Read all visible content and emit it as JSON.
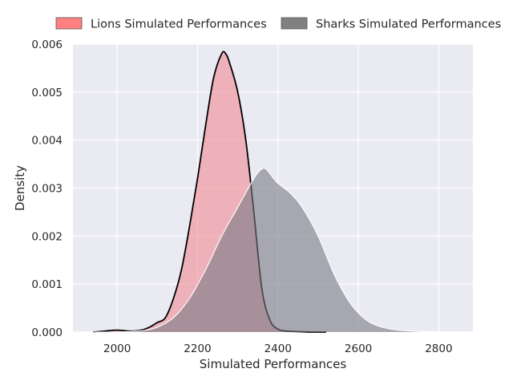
{
  "chart_data": {
    "type": "area",
    "title": "",
    "xlabel": "Simulated Performances",
    "ylabel": "Density",
    "xlim": [
      1890,
      2885
    ],
    "ylim": [
      0,
      0.006
    ],
    "xticks": [
      2000,
      2200,
      2400,
      2600,
      2800
    ],
    "yticks": [
      0.0,
      0.001,
      0.002,
      0.003,
      0.004,
      0.005,
      0.006
    ],
    "ytick_labels": [
      "0.000",
      "0.001",
      "0.002",
      "0.003",
      "0.004",
      "0.005",
      "0.006"
    ],
    "grid": true,
    "legend_position": "top",
    "series": [
      {
        "name": "Lions Simulated Performances",
        "fill": "#f08a95",
        "legend_fill": "#ff8080",
        "stroke": "#000000",
        "x": [
          1940,
          1970,
          2000,
          2030,
          2060,
          2080,
          2100,
          2120,
          2140,
          2160,
          2180,
          2200,
          2220,
          2240,
          2260,
          2270,
          2280,
          2300,
          2320,
          2340,
          2360,
          2380,
          2400,
          2420,
          2450,
          2480,
          2520
        ],
        "y": [
          0.0,
          2e-05,
          4e-05,
          2e-05,
          4e-05,
          0.0001,
          0.0002,
          0.0003,
          0.0007,
          0.0013,
          0.0022,
          0.0032,
          0.0043,
          0.0053,
          0.0058,
          0.0058,
          0.0056,
          0.005,
          0.004,
          0.0025,
          0.0009,
          0.00025,
          6e-05,
          2e-05,
          1e-05,
          0.0,
          0.0
        ]
      },
      {
        "name": "Sharks Simulated Performances",
        "fill": "#7a7a85",
        "legend_fill": "#808080",
        "stroke": "#ffffff",
        "x": [
          1940,
          2000,
          2050,
          2070,
          2100,
          2140,
          2180,
          2220,
          2260,
          2300,
          2340,
          2360,
          2370,
          2380,
          2400,
          2430,
          2460,
          2500,
          2540,
          2580,
          2620,
          2660,
          2700,
          2760,
          2850
        ],
        "y": [
          0.0,
          0.0,
          2e-05,
          4e-05,
          0.0001,
          0.0003,
          0.0007,
          0.0013,
          0.002,
          0.0026,
          0.0032,
          0.0034,
          0.0034,
          0.0033,
          0.0031,
          0.0029,
          0.0026,
          0.002,
          0.0012,
          0.0006,
          0.00025,
          0.0001,
          4e-05,
          1e-05,
          0.0
        ]
      }
    ]
  }
}
